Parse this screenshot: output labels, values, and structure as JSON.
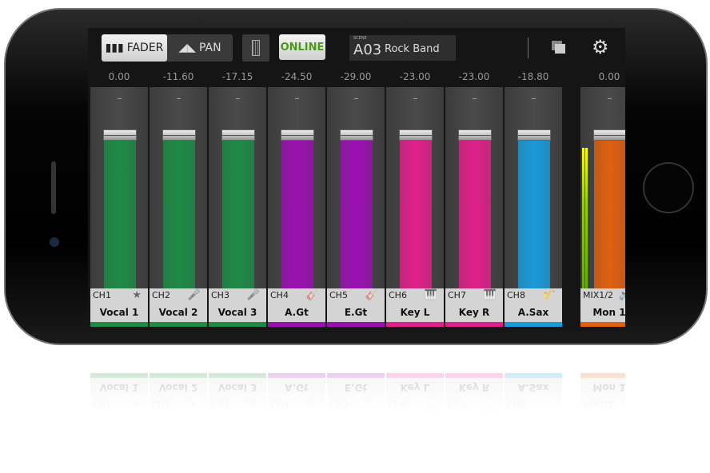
{
  "toolbar": {
    "fader_label": "FADER",
    "pan_label": "PAN",
    "online_label": "ONLINE",
    "scene_caption": "SCENE",
    "scene_number": "A03",
    "scene_name": "Rock Band",
    "online_color": "#4a9a1a"
  },
  "channels": [
    {
      "id": "CH1",
      "name": "Vocal 1",
      "value": "0.00",
      "color": "#1e8a46",
      "icon": "star-icon",
      "glyph": "★"
    },
    {
      "id": "CH2",
      "name": "Vocal 2",
      "value": "-11.60",
      "color": "#1e8a46",
      "icon": "microphone-icon",
      "glyph": "🎤"
    },
    {
      "id": "CH3",
      "name": "Vocal 3",
      "value": "-17.15",
      "color": "#1e8a46",
      "icon": "microphone-icon",
      "glyph": "🎤"
    },
    {
      "id": "CH4",
      "name": "A.Gt",
      "value": "-24.50",
      "color": "#9a10b0",
      "icon": "acoustic-guitar-icon",
      "glyph": "🎸"
    },
    {
      "id": "CH5",
      "name": "E.Gt",
      "value": "-29.00",
      "color": "#9a10b0",
      "icon": "electric-guitar-icon",
      "glyph": "🎸"
    },
    {
      "id": "CH6",
      "name": "Key L",
      "value": "-23.00",
      "color": "#e0208a",
      "icon": "keyboard-icon",
      "glyph": "🎹"
    },
    {
      "id": "CH7",
      "name": "Key R",
      "value": "-23.00",
      "color": "#e0208a",
      "icon": "keyboard-icon",
      "glyph": "🎹"
    },
    {
      "id": "CH8",
      "name": "A.Sax",
      "value": "-18.80",
      "color": "#1a9ad8",
      "icon": "saxophone-icon",
      "glyph": "🎷"
    }
  ],
  "mix": {
    "id": "MIX1/2",
    "name": "Mon 1",
    "value": "0.00",
    "color": "#e06010",
    "icon": "monitor-icon",
    "glyph": "🔊"
  }
}
